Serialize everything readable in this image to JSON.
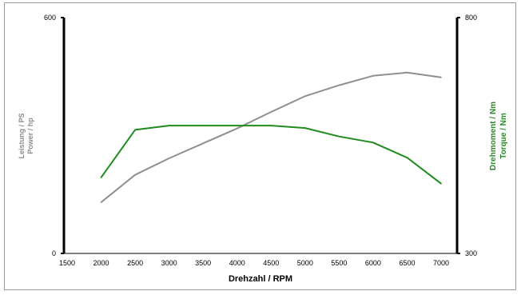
{
  "chart_data": {
    "type": "line",
    "xlabel": "Drehzahl / RPM",
    "x": [
      2000,
      2500,
      3000,
      3500,
      4000,
      4500,
      5000,
      5500,
      6000,
      6500,
      7000
    ],
    "x_ticks": [
      "1500",
      "2000",
      "2500",
      "3000",
      "3500",
      "4000",
      "4500",
      "5000",
      "5500",
      "6000",
      "6500",
      "7000"
    ],
    "xlim": [
      1500,
      7000
    ],
    "left_axis": {
      "label_line1": "Leistung / PS",
      "label_line2": "Power / hp",
      "min_label": "0",
      "max_label": "600",
      "ylim": [
        0,
        600
      ]
    },
    "right_axis": {
      "label_line1": "Drehmoment / Nm",
      "label_line2": "Torque / Nm",
      "min_label": "300",
      "max_label": "800",
      "ylim": [
        300,
        800
      ]
    },
    "series": [
      {
        "axis": "left",
        "color": "#8f8f8f",
        "values": [
          130,
          200,
          242,
          280,
          318,
          360,
          400,
          428,
          452,
          460,
          448
        ]
      },
      {
        "axis": "right",
        "color": "#1e8c1e",
        "values": [
          461,
          562,
          571,
          571,
          571,
          571,
          566,
          548,
          535,
          503,
          448
        ]
      }
    ],
    "grid": false,
    "legend": "none"
  }
}
